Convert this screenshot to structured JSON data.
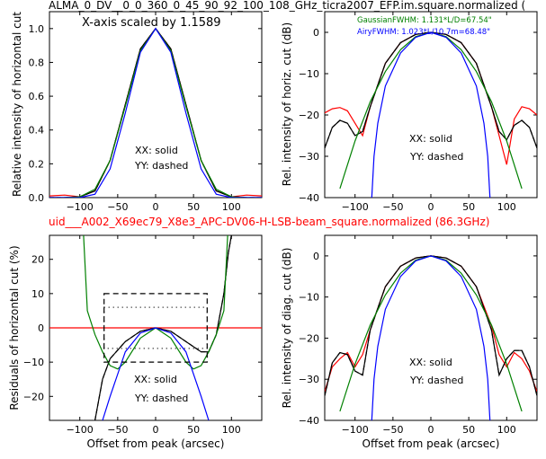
{
  "chart_data": {
    "type": "line",
    "suptitle_top": "ALMA_0_DV__0_0_360_0_45_90_92_100_108_GHz_ticra2007_EFP.im.square.normalized (",
    "suptitle_mid": "uid___A002_X69ec79_X8e3_APC-DV06-H-LSB-beam_square.normalized (86.3GHz)",
    "colors": {
      "mid_title": "#ff0000",
      "xx_meas": "#ff0000",
      "model": "#000000",
      "gaussian": "#008000",
      "airy": "#0000ff"
    },
    "panels": [
      {
        "id": "top-left",
        "ylabel": "Relative intensity of horizontal cut",
        "xlim": [
          -140,
          140
        ],
        "ylim": [
          0,
          1.1
        ],
        "xticks": [
          -100,
          -50,
          0,
          50,
          100
        ],
        "yticks": [
          0.0,
          0.2,
          0.4,
          0.6,
          0.8,
          1.0
        ],
        "ytick_labels": [
          "0.0",
          "0.2",
          "0.4",
          "0.6",
          "0.8",
          "1.0"
        ],
        "annotation": "X-axis scaled by 1.1589",
        "legend_solid": "XX: solid",
        "legend_dashed": "YY: dashed",
        "series": [
          {
            "color": "red",
            "style": "solid",
            "x": [
              -140,
              -120,
              -100,
              -80,
              -60,
              -40,
              -20,
              0,
              20,
              40,
              60,
              80,
              100,
              120,
              140
            ],
            "y": [
              0.01,
              0.015,
              0.005,
              0.04,
              0.22,
              0.55,
              0.88,
              1.0,
              0.88,
              0.55,
              0.22,
              0.04,
              0.005,
              0.015,
              0.01
            ]
          },
          {
            "color": "black",
            "style": "solid",
            "x": [
              -140,
              -120,
              -100,
              -80,
              -60,
              -40,
              -20,
              0,
              20,
              40,
              60,
              80,
              100,
              120,
              140
            ],
            "y": [
              0.0,
              0.0,
              0.005,
              0.04,
              0.22,
              0.55,
              0.88,
              1.0,
              0.88,
              0.55,
              0.22,
              0.04,
              0.005,
              0.0,
              0.0
            ]
          },
          {
            "color": "green",
            "style": "solid",
            "x": [
              -140,
              -120,
              -100,
              -80,
              -60,
              -40,
              -20,
              0,
              20,
              40,
              60,
              80,
              100,
              120,
              140
            ],
            "y": [
              0.0,
              0.0,
              0.005,
              0.05,
              0.22,
              0.54,
              0.87,
              1.0,
              0.87,
              0.54,
              0.22,
              0.05,
              0.005,
              0.0,
              0.0
            ]
          },
          {
            "color": "blue",
            "style": "solid",
            "x": [
              -140,
              -120,
              -100,
              -80,
              -60,
              -40,
              -20,
              0,
              20,
              40,
              60,
              80,
              100,
              120,
              140
            ],
            "y": [
              0.0,
              0.0,
              0.0,
              0.02,
              0.17,
              0.5,
              0.86,
              1.0,
              0.86,
              0.5,
              0.17,
              0.02,
              0.0,
              0.0,
              0.0
            ]
          }
        ]
      },
      {
        "id": "top-right",
        "ylabel": "Rel. intensity of horiz. cut (dB)",
        "xlim": [
          -140,
          140
        ],
        "ylim": [
          -40,
          5
        ],
        "xticks": [
          -100,
          -50,
          0,
          50,
          100
        ],
        "yticks": [
          -40,
          -30,
          -20,
          -10,
          0
        ],
        "ytick_labels": [
          "−40",
          "−30",
          "−20",
          "−10",
          "0"
        ],
        "gauss_label": "GaussianFWHM: 1.131*L/D=67.54\"",
        "airy_label": "AiryFWHM: 1.023*L/10.7m=68.48\"",
        "legend_solid": "XX: solid",
        "legend_dashed": "YY: dashed",
        "series": [
          {
            "color": "red",
            "style": "solid",
            "x": [
              -140,
              -130,
              -120,
              -110,
              -100,
              -90,
              -80,
              -60,
              -40,
              -20,
              0,
              20,
              40,
              60,
              80,
              90,
              100,
              110,
              120,
              130,
              140
            ],
            "y": [
              -19.5,
              -18.5,
              -18.2,
              -19,
              -22,
              -25,
              -18,
              -7.5,
              -2.5,
              -0.5,
              0,
              -0.5,
              -2.5,
              -7.5,
              -18,
              -25,
              -32,
              -21,
              -18,
              -18.5,
              -20
            ]
          },
          {
            "color": "black",
            "style": "solid",
            "x": [
              -140,
              -130,
              -120,
              -110,
              -100,
              -90,
              -80,
              -60,
              -40,
              -20,
              0,
              20,
              40,
              60,
              80,
              90,
              100,
              110,
              120,
              130,
              140
            ],
            "y": [
              -28,
              -23,
              -21.3,
              -22,
              -25,
              -24,
              -18,
              -7.5,
              -2.5,
              -0.5,
              0,
              -0.5,
              -2.5,
              -7.5,
              -18,
              -24,
              -26,
              -22.5,
              -21.3,
              -23,
              -28
            ]
          },
          {
            "color": "green",
            "style": "solid",
            "x": [
              -120,
              -100,
              -80,
              -60,
              -40,
              -20,
              0,
              20,
              40,
              60,
              80,
              100,
              120
            ],
            "y": [
              -37.8,
              -26.3,
              -16.8,
              -9.5,
              -4.2,
              -1.05,
              0,
              -1.05,
              -4.2,
              -9.5,
              -16.8,
              -26.3,
              -37.8
            ]
          },
          {
            "color": "blue",
            "style": "solid",
            "x": [
              -78,
              -75,
              -70,
              -60,
              -40,
              -20,
              0,
              20,
              40,
              60,
              70,
              75,
              78
            ],
            "y": [
              -40,
              -30,
              -22,
              -13,
              -5,
              -1.2,
              0,
              -1.2,
              -5,
              -13,
              -22,
              -30,
              -40
            ]
          }
        ]
      },
      {
        "id": "bottom-left",
        "xlabel": "Offset from peak (arcsec)",
        "ylabel": "Residuals of horizontal cut (%)",
        "xlim": [
          -140,
          140
        ],
        "ylim": [
          -27,
          27
        ],
        "xticks": [
          -100,
          -50,
          0,
          50,
          100
        ],
        "yticks": [
          -20,
          -10,
          0,
          10,
          20
        ],
        "ytick_labels": [
          "−20",
          "−10",
          "0",
          "10",
          "20"
        ],
        "legend_solid": "XX: solid",
        "legend_dashed": "YY: dashed",
        "series": [
          {
            "color": "red",
            "style": "solid",
            "x": [
              -140,
              140
            ],
            "y": [
              0,
              0
            ]
          },
          {
            "color": "black",
            "style": "solid",
            "x": [
              -80,
              -70,
              -60,
              -40,
              -20,
              0,
              20,
              40,
              60,
              70,
              80,
              90,
              96,
              100
            ],
            "y": [
              -27,
              -15,
              -9,
              -4,
              -1,
              0,
              -1,
              -4,
              -7,
              -7,
              -2,
              10,
              22,
              27
            ]
          },
          {
            "color": "green",
            "style": "solid",
            "x": [
              -95,
              -90,
              -80,
              -70,
              -60,
              -50,
              -40,
              -20,
              0,
              20,
              40,
              50,
              60,
              70,
              80,
              90,
              95
            ],
            "y": [
              27,
              5,
              -2,
              -7,
              -11,
              -12,
              -10,
              -3,
              0,
              -3,
              -10,
              -12,
              -11,
              -7,
              -2,
              5,
              27
            ]
          },
          {
            "color": "blue",
            "style": "solid",
            "x": [
              -70,
              -60,
              -40,
              -20,
              0,
              20,
              40,
              60,
              70
            ],
            "y": [
              -27,
              -20,
              -7,
              -1.5,
              0,
              -1.5,
              -7,
              -20,
              -27
            ]
          }
        ]
      },
      {
        "id": "bottom-right",
        "xlabel": "Offset from peak (arcsec)",
        "ylabel": "Rel. intensity of diag. cut (dB)",
        "xlim": [
          -140,
          140
        ],
        "ylim": [
          -40,
          5
        ],
        "xticks": [
          -100,
          -50,
          0,
          50,
          100
        ],
        "yticks": [
          -40,
          -30,
          -20,
          -10,
          0
        ],
        "ytick_labels": [
          "−40",
          "−30",
          "−20",
          "−10",
          "0"
        ],
        "legend_solid": "XX: solid",
        "legend_dashed": "YY: dashed",
        "series": [
          {
            "color": "red",
            "style": "solid",
            "x": [
              -140,
              -130,
              -120,
              -110,
              -100,
              -90,
              -80,
              -60,
              -40,
              -20,
              0,
              20,
              40,
              60,
              80,
              90,
              100,
              110,
              120,
              130,
              140
            ],
            "y": [
              -33,
              -27,
              -25,
              -23.5,
              -27,
              -24,
              -18,
              -7.5,
              -2.5,
              -0.5,
              0,
              -0.5,
              -2.5,
              -7.5,
              -17,
              -24,
              -27,
              -23.5,
              -25,
              -28,
              -33
            ]
          },
          {
            "color": "black",
            "style": "solid",
            "x": [
              -140,
              -130,
              -120,
              -110,
              -100,
              -90,
              -80,
              -60,
              -40,
              -20,
              0,
              20,
              40,
              60,
              80,
              90,
              100,
              110,
              120,
              130,
              140
            ],
            "y": [
              -34,
              -26,
              -23.5,
              -24,
              -28,
              -29,
              -18,
              -7.5,
              -2.5,
              -0.5,
              0,
              -0.5,
              -2.5,
              -7.5,
              -18,
              -29,
              -25,
              -23,
              -23,
              -27,
              -34
            ]
          },
          {
            "color": "green",
            "style": "solid",
            "x": [
              -120,
              -100,
              -80,
              -60,
              -40,
              -20,
              0,
              20,
              40,
              60,
              80,
              100,
              120
            ],
            "y": [
              -37.8,
              -26.3,
              -16.8,
              -9.5,
              -4.2,
              -1.05,
              0,
              -1.05,
              -4.2,
              -9.5,
              -16.8,
              -26.3,
              -37.8
            ]
          },
          {
            "color": "blue",
            "style": "solid",
            "x": [
              -78,
              -75,
              -70,
              -60,
              -40,
              -20,
              0,
              20,
              40,
              60,
              70,
              75,
              78
            ],
            "y": [
              -40,
              -30,
              -22,
              -13,
              -5,
              -1.2,
              0,
              -1.2,
              -5,
              -13,
              -22,
              -30,
              -40
            ]
          }
        ]
      }
    ]
  }
}
